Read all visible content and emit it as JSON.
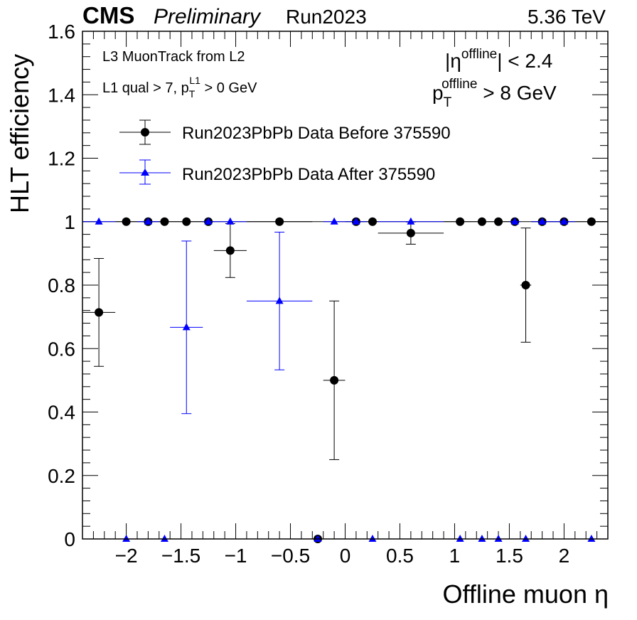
{
  "header": {
    "experiment": "CMS",
    "status": "Preliminary",
    "run": "Run2023",
    "energy": "5.36 TeV"
  },
  "annotations": {
    "path": "L3 MuonTrack from L2",
    "l1_prefix": "L1 qual > 7, p",
    "l1_sub": "T",
    "l1_sup": "L1",
    "l1_suffix": " > 0 GeV",
    "eta_open": "|η",
    "eta_sup": "offline",
    "eta_close": "| < 2.4",
    "pt_p": "p",
    "pt_sub": "T",
    "pt_sup": "offline",
    "pt_suffix": " > 8 GeV"
  },
  "chart_data": {
    "type": "scatter",
    "xlabel": "Offline muon η",
    "ylabel": "HLT efficiency",
    "xlim": [
      -2.4,
      2.4
    ],
    "ylim": [
      0,
      1.6
    ],
    "xticks": [
      -2,
      -1.5,
      -1,
      -0.5,
      0,
      0.5,
      1,
      1.5,
      2
    ],
    "xtick_labels": [
      "−2",
      "−1.5",
      "−1",
      "−0.5",
      "0",
      "0.5",
      "1",
      "1.5",
      "2"
    ],
    "yticks": [
      0,
      0.2,
      0.4,
      0.6,
      0.8,
      1,
      1.2,
      1.4,
      1.6
    ],
    "ytick_labels": [
      "0",
      "0.2",
      "0.4",
      "0.6",
      "0.8",
      "1",
      "1.2",
      "1.4",
      "1.6"
    ],
    "reference_line": 1,
    "legend_position": "top-left",
    "series": [
      {
        "name": "Run2023PbPb Data Before 375590",
        "color": "#000000",
        "marker": "circle",
        "points": [
          {
            "x": -2.25,
            "xerr": 0.15,
            "y": 0.714,
            "elo": 0.17,
            "ehi": 0.17
          },
          {
            "x": -2.0,
            "xerr": 0.1,
            "y": 1.0,
            "elo": 0.0,
            "ehi": 0.0
          },
          {
            "x": -1.8,
            "xerr": 0.1,
            "y": 1.0,
            "elo": 0.0,
            "ehi": 0.0
          },
          {
            "x": -1.65,
            "xerr": 0.05,
            "y": 1.0,
            "elo": 0.0,
            "ehi": 0.0
          },
          {
            "x": -1.45,
            "xerr": 0.15,
            "y": 1.0,
            "elo": 0.0,
            "ehi": 0.0
          },
          {
            "x": -1.25,
            "xerr": 0.05,
            "y": 1.0,
            "elo": 0.0,
            "ehi": 0.0
          },
          {
            "x": -1.05,
            "xerr": 0.15,
            "y": 0.909,
            "elo": 0.085,
            "ehi": 0.085
          },
          {
            "x": -0.6,
            "xerr": 0.3,
            "y": 1.0,
            "elo": 0.0,
            "ehi": 0.0
          },
          {
            "x": -0.25,
            "xerr": 0.05,
            "y": 0.0,
            "elo": 0.0,
            "ehi": 0.0
          },
          {
            "x": -0.1,
            "xerr": 0.1,
            "y": 0.5,
            "elo": 0.25,
            "ehi": 0.25
          },
          {
            "x": 0.1,
            "xerr": 0.1,
            "y": 1.0,
            "elo": 0.0,
            "ehi": 0.0
          },
          {
            "x": 0.25,
            "xerr": 0.05,
            "y": 1.0,
            "elo": 0.0,
            "ehi": 0.0
          },
          {
            "x": 0.6,
            "xerr": 0.3,
            "y": 0.964,
            "elo": 0.035,
            "ehi": 0.035
          },
          {
            "x": 1.05,
            "xerr": 0.15,
            "y": 1.0,
            "elo": 0.0,
            "ehi": 0.0
          },
          {
            "x": 1.25,
            "xerr": 0.05,
            "y": 1.0,
            "elo": 0.0,
            "ehi": 0.0
          },
          {
            "x": 1.4,
            "xerr": 0.1,
            "y": 1.0,
            "elo": 0.0,
            "ehi": 0.0
          },
          {
            "x": 1.55,
            "xerr": 0.05,
            "y": 1.0,
            "elo": 0.0,
            "ehi": 0.0
          },
          {
            "x": 1.65,
            "xerr": 0.05,
            "y": 0.8,
            "elo": 0.18,
            "ehi": 0.18
          },
          {
            "x": 1.8,
            "xerr": 0.1,
            "y": 1.0,
            "elo": 0.0,
            "ehi": 0.0
          },
          {
            "x": 2.0,
            "xerr": 0.1,
            "y": 1.0,
            "elo": 0.0,
            "ehi": 0.0
          },
          {
            "x": 2.25,
            "xerr": 0.15,
            "y": 1.0,
            "elo": 0.0,
            "ehi": 0.0
          }
        ]
      },
      {
        "name": "Run2023PbPb Data After 375590",
        "color": "#0000ff",
        "marker": "triangle",
        "points": [
          {
            "x": -2.25,
            "xerr": 0.15,
            "y": 1.0,
            "elo": 0.0,
            "ehi": 0.0
          },
          {
            "x": -2.0,
            "xerr": 0.1,
            "y": 0.0,
            "elo": 0.0,
            "ehi": 0.0
          },
          {
            "x": -1.8,
            "xerr": 0.1,
            "y": 1.0,
            "elo": 0.0,
            "ehi": 0.0
          },
          {
            "x": -1.65,
            "xerr": 0.05,
            "y": 0.0,
            "elo": 0.0,
            "ehi": 0.0
          },
          {
            "x": -1.45,
            "xerr": 0.15,
            "y": 0.667,
            "elo": 0.272,
            "ehi": 0.272
          },
          {
            "x": -1.25,
            "xerr": 0.05,
            "y": 1.0,
            "elo": 0.0,
            "ehi": 0.0
          },
          {
            "x": -1.05,
            "xerr": 0.15,
            "y": 1.0,
            "elo": 0.0,
            "ehi": 0.0
          },
          {
            "x": -0.6,
            "xerr": 0.3,
            "y": 0.75,
            "elo": 0.217,
            "ehi": 0.217
          },
          {
            "x": -0.25,
            "xerr": 0.05,
            "y": 0.0,
            "elo": 0.0,
            "ehi": 0.0
          },
          {
            "x": -0.1,
            "xerr": 0.1,
            "y": 1.0,
            "elo": 0.0,
            "ehi": 0.0
          },
          {
            "x": 0.1,
            "xerr": 0.1,
            "y": 1.0,
            "elo": 0.0,
            "ehi": 0.0
          },
          {
            "x": 0.25,
            "xerr": 0.05,
            "y": 0.0,
            "elo": 0.0,
            "ehi": 0.0
          },
          {
            "x": 0.6,
            "xerr": 0.3,
            "y": 1.0,
            "elo": 0.0,
            "ehi": 0.0
          },
          {
            "x": 1.05,
            "xerr": 0.15,
            "y": 0.0,
            "elo": 0.0,
            "ehi": 0.0
          },
          {
            "x": 1.25,
            "xerr": 0.05,
            "y": 0.0,
            "elo": 0.0,
            "ehi": 0.0
          },
          {
            "x": 1.4,
            "xerr": 0.1,
            "y": 0.0,
            "elo": 0.0,
            "ehi": 0.0
          },
          {
            "x": 1.55,
            "xerr": 0.05,
            "y": 1.0,
            "elo": 0.0,
            "ehi": 0.0
          },
          {
            "x": 1.65,
            "xerr": 0.05,
            "y": 0.0,
            "elo": 0.0,
            "ehi": 0.0
          },
          {
            "x": 1.8,
            "xerr": 0.1,
            "y": 1.0,
            "elo": 0.0,
            "ehi": 0.0
          },
          {
            "x": 2.0,
            "xerr": 0.1,
            "y": 1.0,
            "elo": 0.0,
            "ehi": 0.0
          },
          {
            "x": 2.25,
            "xerr": 0.15,
            "y": 0.0,
            "elo": 0.0,
            "ehi": 0.0
          }
        ]
      }
    ]
  }
}
